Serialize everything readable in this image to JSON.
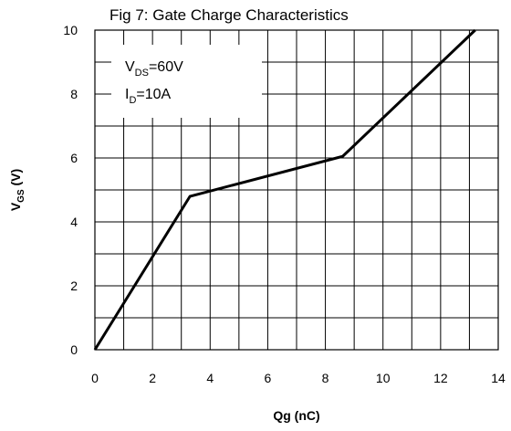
{
  "chart_data": {
    "type": "line",
    "title": "Fig 7: Gate Charge  Characteristics",
    "xlabel": "Qg (nC)",
    "ylabel": {
      "main": "V",
      "sub": "GS",
      "rest": " (V)"
    },
    "xlim": [
      0,
      14
    ],
    "ylim": [
      0,
      10
    ],
    "xticks": [
      0,
      2,
      4,
      6,
      8,
      10,
      12,
      14
    ],
    "yticks": [
      0,
      2,
      4,
      6,
      8,
      10
    ],
    "x_minor_step": 1,
    "y_minor_step": 1,
    "grid": true,
    "series": [
      {
        "x": [
          0,
          3.3,
          8.6,
          13.2
        ],
        "y": [
          0,
          4.8,
          6.05,
          10
        ]
      }
    ],
    "annotations": [
      {
        "main": "V",
        "sub": "DS",
        "rest": "=60V"
      },
      {
        "main": "I",
        "sub": "D",
        "rest": "=10A"
      }
    ]
  }
}
